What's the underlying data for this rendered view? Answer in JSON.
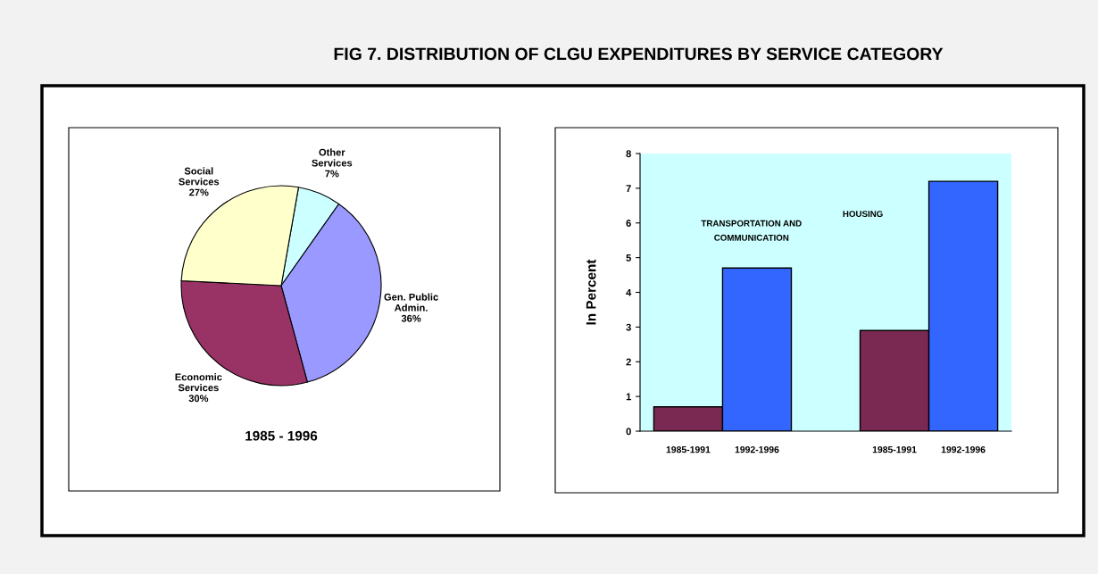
{
  "chart_data": [
    {
      "type": "pie",
      "title": "FIG 7. DISTRIBUTION OF CLGU EXPENDITURES BY SERVICE CATEGORY",
      "xlabel": "1985 - 1996",
      "categories": [
        "Other\nServices",
        "Gen. Public\nAdmin.",
        "Economic\nServices",
        "Social\nServices"
      ],
      "values": [
        7,
        36,
        30,
        27
      ],
      "colors": [
        "#ccffff",
        "#9999ff",
        "#993366",
        "#ffffcc"
      ],
      "value_labels": [
        "7%",
        "36%",
        "30%",
        "27%"
      ]
    },
    {
      "type": "bar",
      "ylabel": "In Percent",
      "categories": [
        "1985-1991",
        "1992-1996",
        null,
        "1985-1991",
        "1992-1996"
      ],
      "values": [
        0.7,
        4.7,
        null,
        2.9,
        7.2
      ],
      "colors": [
        "#7a2a52",
        "#3366ff",
        null,
        "#7a2a52",
        "#3366ff"
      ],
      "ylim": [
        0,
        8
      ],
      "yticks": [
        0,
        1,
        2,
        3,
        4,
        5,
        6,
        7,
        8
      ],
      "grid": false,
      "annotations": [
        "TRANSPORTATION AND\nCOMMUNICATION",
        "HOUSING"
      ]
    }
  ]
}
